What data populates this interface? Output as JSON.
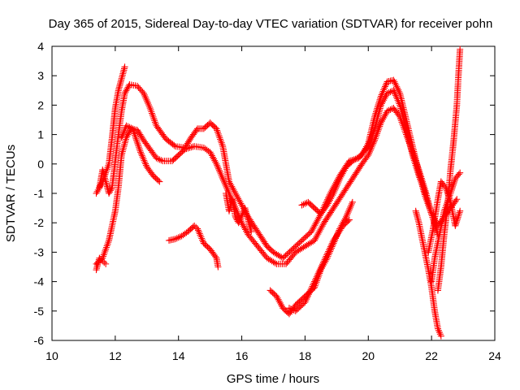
{
  "chart_data": {
    "type": "scatter",
    "title": "Day 365 of 2015, Sidereal Day-to-day VTEC variation (SDTVAR) for receiver pohn",
    "xlabel": "GPS time / hours",
    "ylabel": "SDTVAR / TECUs",
    "xlim": [
      10,
      24
    ],
    "ylim": [
      -6,
      4
    ],
    "xticks": [
      10,
      12,
      14,
      16,
      18,
      20,
      22,
      24
    ],
    "yticks": [
      -6,
      -5,
      -4,
      -3,
      -2,
      -1,
      0,
      1,
      2,
      3,
      4
    ],
    "grid": false,
    "legend": "none",
    "marker": "+",
    "color": "#ff0000",
    "series": [
      {
        "name": "arc-1",
        "points": [
          [
            11.4,
            -1.0
          ],
          [
            11.6,
            -0.6
          ],
          [
            11.8,
            0.0
          ],
          [
            11.9,
            0.9
          ],
          [
            12.0,
            1.9
          ],
          [
            12.1,
            2.5
          ],
          [
            12.2,
            2.9
          ],
          [
            12.3,
            3.3
          ]
        ]
      },
      {
        "name": "arc-2",
        "points": [
          [
            11.5,
            -0.8
          ],
          [
            11.6,
            -0.2
          ],
          [
            11.8,
            -1.0
          ],
          [
            11.9,
            -0.8
          ],
          [
            12.0,
            0.1
          ],
          [
            12.1,
            1.0
          ],
          [
            12.2,
            1.8
          ],
          [
            12.3,
            2.4
          ],
          [
            12.45,
            2.7
          ],
          [
            12.7,
            2.65
          ],
          [
            12.9,
            2.4
          ],
          [
            13.1,
            1.9
          ],
          [
            13.3,
            1.3
          ],
          [
            13.6,
            0.85
          ],
          [
            13.9,
            0.6
          ],
          [
            14.2,
            0.55
          ],
          [
            14.4,
            0.9
          ],
          [
            14.6,
            1.2
          ],
          [
            14.8,
            1.2
          ],
          [
            15.0,
            1.4
          ],
          [
            15.2,
            1.2
          ],
          [
            15.4,
            0.6
          ],
          [
            15.5,
            0.0
          ],
          [
            15.6,
            -0.6
          ],
          [
            15.8,
            -1.0
          ],
          [
            16.0,
            -1.4
          ],
          [
            16.2,
            -1.8
          ],
          [
            16.5,
            -2.3
          ],
          [
            16.8,
            -2.8
          ],
          [
            17.0,
            -3.0
          ],
          [
            17.3,
            -3.2
          ],
          [
            17.6,
            -2.9
          ],
          [
            17.9,
            -2.6
          ],
          [
            18.2,
            -2.3
          ],
          [
            18.5,
            -1.7
          ],
          [
            18.8,
            -1.0
          ],
          [
            19.1,
            -0.4
          ],
          [
            19.4,
            0.1
          ],
          [
            19.7,
            0.2
          ],
          [
            20.0,
            0.6
          ],
          [
            20.2,
            1.2
          ],
          [
            20.4,
            2.0
          ],
          [
            20.6,
            2.4
          ],
          [
            20.8,
            2.5
          ],
          [
            21.0,
            2.0
          ],
          [
            21.2,
            1.2
          ],
          [
            21.4,
            0.3
          ],
          [
            21.6,
            -0.4
          ],
          [
            21.8,
            -1.0
          ]
        ]
      },
      {
        "name": "arc-3",
        "points": [
          [
            11.4,
            -3.4
          ],
          [
            11.6,
            -3.2
          ],
          [
            11.8,
            -2.6
          ],
          [
            12.0,
            -1.6
          ],
          [
            12.1,
            -0.8
          ],
          [
            12.2,
            0.3
          ],
          [
            12.35,
            0.9
          ],
          [
            12.5,
            1.2
          ],
          [
            12.7,
            1.15
          ],
          [
            12.9,
            0.8
          ],
          [
            13.1,
            0.5
          ],
          [
            13.3,
            0.2
          ],
          [
            13.5,
            0.1
          ],
          [
            13.8,
            0.1
          ],
          [
            14.0,
            0.3
          ],
          [
            14.2,
            0.5
          ],
          [
            14.5,
            0.6
          ],
          [
            14.8,
            0.55
          ],
          [
            15.0,
            0.4
          ],
          [
            15.2,
            0.0
          ],
          [
            15.4,
            -0.5
          ],
          [
            15.6,
            -1.0
          ],
          [
            15.8,
            -1.5
          ],
          [
            16.0,
            -2.0
          ],
          [
            16.2,
            -2.4
          ],
          [
            16.5,
            -2.8
          ],
          [
            16.8,
            -3.2
          ],
          [
            17.1,
            -3.4
          ],
          [
            17.4,
            -3.4
          ],
          [
            17.7,
            -3.0
          ],
          [
            18.0,
            -2.8
          ],
          [
            18.3,
            -2.6
          ],
          [
            18.6,
            -2.0
          ],
          [
            18.9,
            -1.5
          ],
          [
            19.2,
            -1.0
          ],
          [
            19.5,
            -0.5
          ],
          [
            19.8,
            0.0
          ],
          [
            20.0,
            0.3
          ],
          [
            20.2,
            0.8
          ],
          [
            20.4,
            1.4
          ],
          [
            20.6,
            1.8
          ],
          [
            20.8,
            1.9
          ],
          [
            21.0,
            1.6
          ],
          [
            21.2,
            1.0
          ],
          [
            21.4,
            0.4
          ],
          [
            21.6,
            -0.2
          ],
          [
            21.8,
            -0.9
          ],
          [
            22.0,
            -1.7
          ],
          [
            22.2,
            -2.4
          ]
        ]
      },
      {
        "name": "arc-4",
        "points": [
          [
            12.2,
            0.9
          ],
          [
            12.35,
            1.3
          ],
          [
            12.55,
            1.2
          ],
          [
            12.8,
            0.4
          ],
          [
            13.0,
            -0.1
          ],
          [
            13.2,
            -0.4
          ],
          [
            13.4,
            -0.6
          ]
        ]
      },
      {
        "name": "arc-5",
        "points": [
          [
            13.7,
            -2.6
          ],
          [
            13.9,
            -2.55
          ],
          [
            14.1,
            -2.45
          ],
          [
            14.3,
            -2.3
          ],
          [
            14.5,
            -2.1
          ],
          [
            14.6,
            -2.2
          ],
          [
            14.8,
            -2.7
          ],
          [
            15.0,
            -2.9
          ],
          [
            15.2,
            -3.2
          ],
          [
            15.25,
            -3.5
          ]
        ]
      },
      {
        "name": "arc-6",
        "points": [
          [
            16.9,
            -4.3
          ],
          [
            17.1,
            -4.5
          ],
          [
            17.3,
            -4.9
          ],
          [
            17.5,
            -5.1
          ],
          [
            17.7,
            -4.8
          ],
          [
            17.9,
            -4.6
          ],
          [
            18.1,
            -4.4
          ],
          [
            18.3,
            -4.2
          ],
          [
            18.5,
            -3.6
          ],
          [
            18.7,
            -3.2
          ],
          [
            18.9,
            -2.7
          ],
          [
            19.1,
            -2.2
          ],
          [
            19.3,
            -1.8
          ],
          [
            19.5,
            -1.3
          ]
        ]
      },
      {
        "name": "arc-7",
        "points": [
          [
            17.5,
            -4.9
          ],
          [
            17.7,
            -5.0
          ],
          [
            18.0,
            -4.7
          ],
          [
            18.3,
            -4.0
          ],
          [
            18.6,
            -3.3
          ],
          [
            18.9,
            -2.6
          ],
          [
            19.2,
            -2.1
          ],
          [
            19.4,
            -1.9
          ]
        ]
      },
      {
        "name": "arc-8",
        "points": [
          [
            17.9,
            -1.4
          ],
          [
            18.1,
            -1.3
          ],
          [
            18.3,
            -1.5
          ],
          [
            18.5,
            -1.7
          ],
          [
            18.7,
            -1.4
          ],
          [
            18.9,
            -1.0
          ],
          [
            19.1,
            -0.5
          ],
          [
            19.3,
            -0.1
          ],
          [
            19.5,
            0.1
          ],
          [
            19.8,
            0.3
          ],
          [
            20.0,
            0.7
          ],
          [
            20.2,
            1.6
          ],
          [
            20.4,
            2.3
          ],
          [
            20.6,
            2.8
          ],
          [
            20.8,
            2.85
          ],
          [
            21.0,
            2.4
          ],
          [
            21.2,
            1.5
          ],
          [
            21.4,
            0.6
          ],
          [
            21.6,
            -0.3
          ],
          [
            21.8,
            -1.1
          ],
          [
            22.0,
            -1.7
          ],
          [
            22.2,
            -2.1
          ],
          [
            22.4,
            -1.8
          ],
          [
            22.6,
            -1.5
          ],
          [
            22.8,
            -1.2
          ]
        ]
      },
      {
        "name": "arc-9",
        "points": [
          [
            21.9,
            -3.0
          ],
          [
            22.05,
            -2.2
          ],
          [
            22.2,
            -1.2
          ],
          [
            22.3,
            -0.6
          ],
          [
            22.45,
            -0.8
          ],
          [
            22.6,
            -1.3
          ],
          [
            22.75,
            -2.1
          ],
          [
            22.9,
            -1.6
          ]
        ]
      },
      {
        "name": "arc-10",
        "points": [
          [
            21.5,
            -1.6
          ],
          [
            21.6,
            -2.0
          ],
          [
            21.75,
            -2.8
          ],
          [
            21.9,
            -3.6
          ],
          [
            22.0,
            -4.2
          ],
          [
            22.1,
            -5.0
          ],
          [
            22.2,
            -5.6
          ],
          [
            22.3,
            -5.85
          ]
        ]
      },
      {
        "name": "arc-11",
        "points": [
          [
            22.2,
            -4.3
          ],
          [
            22.3,
            -3.5
          ],
          [
            22.4,
            -2.4
          ],
          [
            22.5,
            -1.5
          ],
          [
            22.6,
            -0.2
          ],
          [
            22.7,
            0.8
          ],
          [
            22.8,
            2.0
          ],
          [
            22.85,
            3.0
          ],
          [
            22.9,
            3.9
          ]
        ]
      },
      {
        "name": "arc-12",
        "points": [
          [
            22.0,
            -4.0
          ],
          [
            22.1,
            -3.2
          ],
          [
            22.25,
            -2.4
          ],
          [
            22.4,
            -1.6
          ],
          [
            22.6,
            -1.0
          ],
          [
            22.75,
            -0.5
          ],
          [
            22.9,
            -0.3
          ]
        ]
      },
      {
        "name": "arc-13",
        "points": [
          [
            11.4,
            -3.6
          ],
          [
            11.5,
            -3.2
          ],
          [
            11.6,
            -3.3
          ],
          [
            11.7,
            -3.4
          ]
        ]
      },
      {
        "name": "arc-14",
        "points": [
          [
            15.5,
            -1.0
          ],
          [
            15.6,
            -1.6
          ],
          [
            15.7,
            -1.2
          ],
          [
            15.8,
            -1.8
          ],
          [
            15.9,
            -2.0
          ],
          [
            16.1,
            -1.5
          ],
          [
            16.3,
            -2.3
          ]
        ]
      }
    ]
  }
}
